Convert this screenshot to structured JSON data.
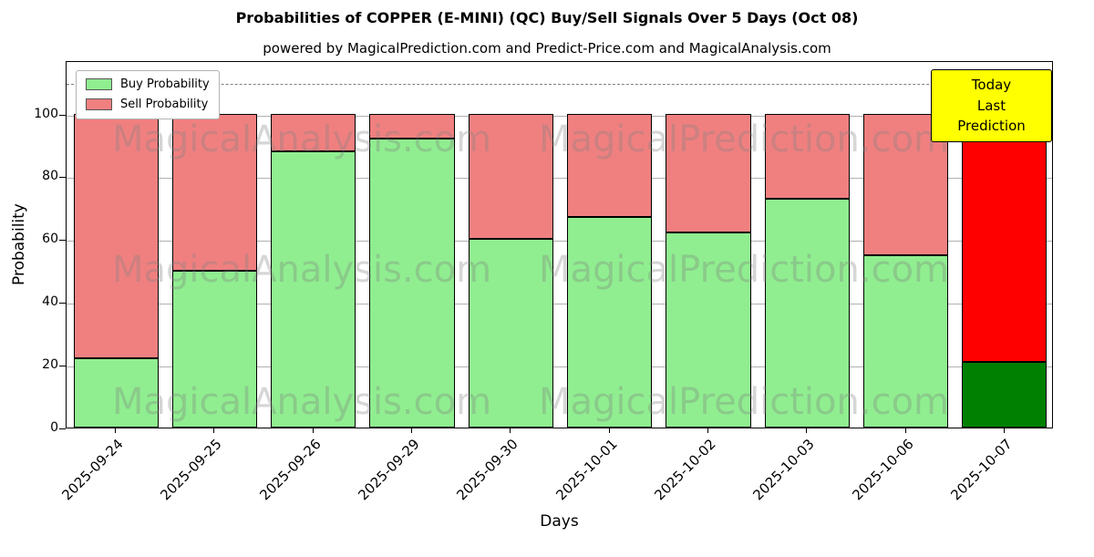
{
  "title": "Probabilities of COPPER (E-MINI) (QC) Buy/Sell Signals Over 5 Days (Oct 08)",
  "subtitle": "powered by MagicalPrediction.com and Predict-Price.com and MagicalAnalysis.com",
  "legend": {
    "buy": "Buy Probability",
    "sell": "Sell Probability"
  },
  "annotation": {
    "line1": "Today",
    "line2": "Last Prediction"
  },
  "watermarks": {
    "left": "MagicalAnalysis.com",
    "right": "MagicalPrediction.com"
  },
  "axes": {
    "ylabel": "Probability",
    "xlabel": "Days",
    "yticks": [
      0,
      20,
      40,
      60,
      80,
      100
    ],
    "ylim": [
      0,
      117
    ],
    "dashed_line_y": 110
  },
  "colors": {
    "buy": "#90ee90",
    "sell": "#f08080",
    "today_buy": "#008000",
    "today_sell": "#ff0000",
    "grid": "#b0b0b0",
    "dashed": "#808080",
    "annotation_bg": "#ffff00",
    "watermark": "rgba(128,128,128,0.32)"
  },
  "chart_data": {
    "type": "bar",
    "stacked": true,
    "title": "Probabilities of COPPER (E-MINI) (QC) Buy/Sell Signals Over 5 Days (Oct 08)",
    "xlabel": "Days",
    "ylabel": "Probability",
    "ylim": [
      0,
      117
    ],
    "grid": true,
    "legend_position": "upper left",
    "categories": [
      "2025-09-24",
      "2025-09-25",
      "2025-09-26",
      "2025-09-29",
      "2025-09-30",
      "2025-10-01",
      "2025-10-02",
      "2025-10-03",
      "2025-10-06",
      "2025-10-07"
    ],
    "series": [
      {
        "name": "Buy Probability",
        "values": [
          22,
          50,
          88,
          92,
          60,
          67,
          62,
          73,
          55,
          21
        ]
      },
      {
        "name": "Sell Probability",
        "values": [
          78,
          50,
          12,
          8,
          40,
          33,
          38,
          27,
          45,
          79
        ]
      }
    ]
  }
}
